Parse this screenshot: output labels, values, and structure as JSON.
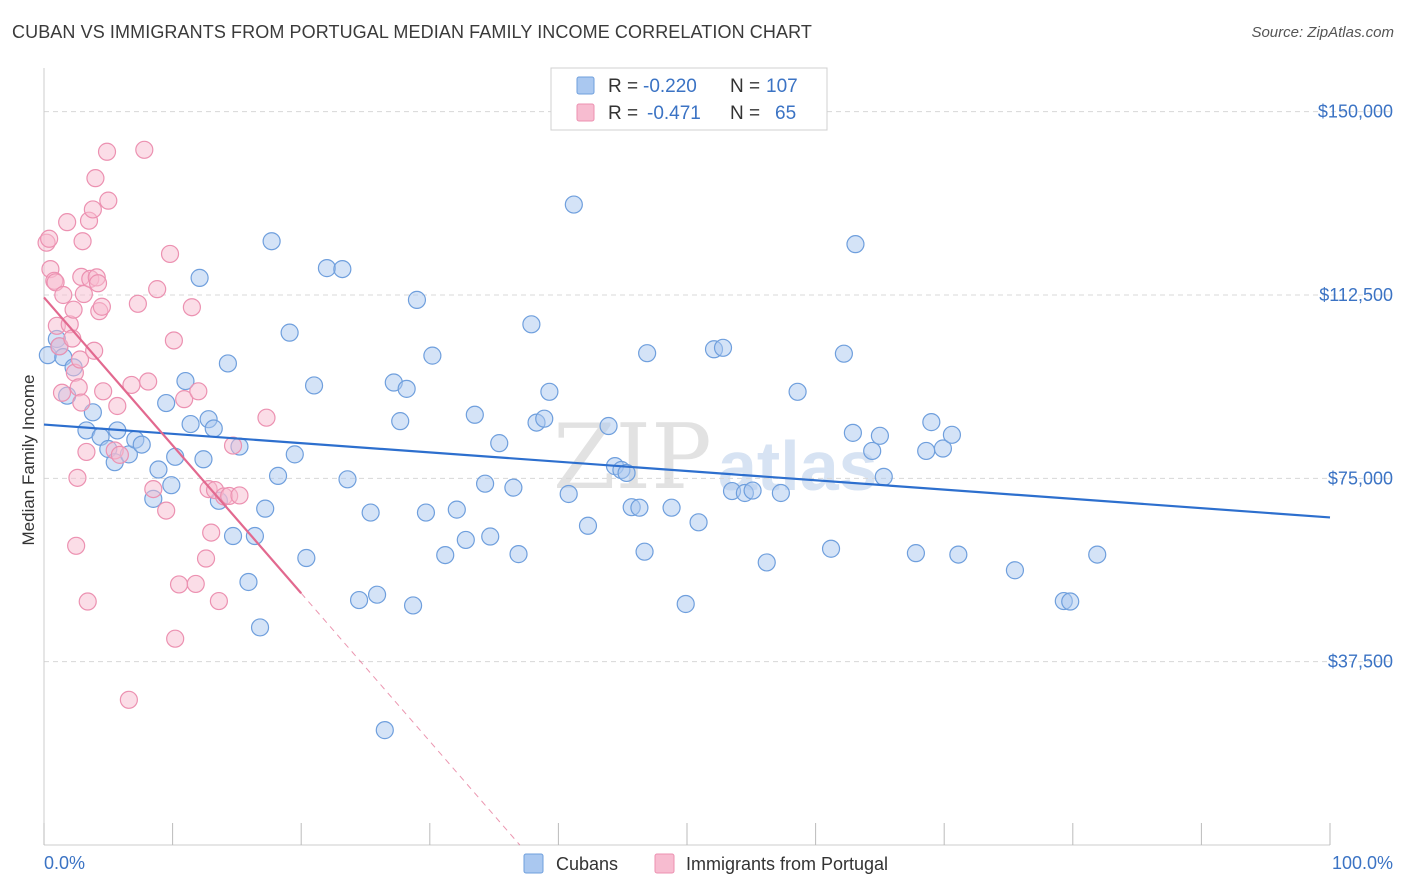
{
  "title": "CUBAN VS IMMIGRANTS FROM PORTUGAL MEDIAN FAMILY INCOME CORRELATION CHART",
  "source": "Source: ZipAtlas.com",
  "watermark": {
    "zip": "ZIP",
    "atlas": "atlas"
  },
  "colors": {
    "blue_fill": "#aac8f0",
    "blue_stroke": "#6f9fdd",
    "blue_line": "#2d6fce",
    "pink_fill": "#f7bcd0",
    "pink_stroke": "#ec91b1",
    "pink_line": "#e2698f",
    "grid": "#d8d8d8",
    "label": "#3b73c4"
  },
  "legend": {
    "rows": [
      {
        "r_label": "R =",
        "r_value": "-0.220",
        "n_label": "N =",
        "n_value": "107"
      },
      {
        "r_label": "R =",
        "r_value": "-0.471",
        "n_label": "N =",
        "n_value": "65"
      }
    ]
  },
  "chart_data": {
    "type": "scatter",
    "xlabel": "",
    "ylabel": "Median Family Income",
    "xlim": [
      0,
      100
    ],
    "ylim": [
      0,
      157500
    ],
    "x_tick_labels": [
      "0.0%",
      "100.0%"
    ],
    "y_ticks": [
      37500,
      75000,
      112500,
      150000
    ],
    "y_tick_labels": [
      "$37,500",
      "$75,000",
      "$112,500",
      "$150,000"
    ],
    "grid": true,
    "legend_position": "bottom",
    "series": [
      {
        "name": "Cubans",
        "r": -0.22,
        "n": 107,
        "trend": {
          "x": [
            0,
            100
          ],
          "y": [
            86000,
            67000
          ]
        },
        "points": [
          [
            0.3,
            100200
          ],
          [
            1.0,
            103500
          ],
          [
            1.2,
            102000
          ],
          [
            1.5,
            99800
          ],
          [
            1.8,
            91900
          ],
          [
            2.3,
            97700
          ],
          [
            3.3,
            84800
          ],
          [
            3.8,
            88500
          ],
          [
            4.4,
            83500
          ],
          [
            5.0,
            81000
          ],
          [
            5.5,
            78300
          ],
          [
            5.7,
            84800
          ],
          [
            6.6,
            79900
          ],
          [
            7.1,
            82900
          ],
          [
            7.6,
            81900
          ],
          [
            8.5,
            70800
          ],
          [
            8.9,
            76800
          ],
          [
            9.5,
            90400
          ],
          [
            9.9,
            73600
          ],
          [
            10.2,
            79400
          ],
          [
            11.0,
            94900
          ],
          [
            11.4,
            86100
          ],
          [
            12.1,
            116000
          ],
          [
            12.4,
            78900
          ],
          [
            12.8,
            87100
          ],
          [
            13.2,
            85200
          ],
          [
            13.6,
            70400
          ],
          [
            14.3,
            98500
          ],
          [
            14.7,
            63200
          ],
          [
            15.2,
            81500
          ],
          [
            15.9,
            53800
          ],
          [
            16.4,
            63200
          ],
          [
            16.8,
            44500
          ],
          [
            17.2,
            68800
          ],
          [
            17.7,
            123500
          ],
          [
            18.2,
            75500
          ],
          [
            19.1,
            104800
          ],
          [
            19.5,
            79900
          ],
          [
            20.4,
            58700
          ],
          [
            21.0,
            94000
          ],
          [
            22.0,
            118000
          ],
          [
            23.2,
            117800
          ],
          [
            23.6,
            74800
          ],
          [
            24.5,
            50100
          ],
          [
            25.4,
            68000
          ],
          [
            25.9,
            51200
          ],
          [
            26.5,
            23500
          ],
          [
            27.2,
            94600
          ],
          [
            27.7,
            86700
          ],
          [
            28.2,
            93300
          ],
          [
            28.7,
            49000
          ],
          [
            29.0,
            111500
          ],
          [
            29.7,
            68000
          ],
          [
            30.2,
            100100
          ],
          [
            31.2,
            59300
          ],
          [
            32.1,
            68600
          ],
          [
            32.8,
            62400
          ],
          [
            33.5,
            88000
          ],
          [
            34.3,
            73900
          ],
          [
            34.7,
            63100
          ],
          [
            35.4,
            82200
          ],
          [
            36.5,
            73100
          ],
          [
            36.9,
            59500
          ],
          [
            37.9,
            106500
          ],
          [
            38.3,
            86400
          ],
          [
            38.9,
            87200
          ],
          [
            39.3,
            92700
          ],
          [
            40.8,
            71800
          ],
          [
            41.2,
            131000
          ],
          [
            42.3,
            65300
          ],
          [
            43.9,
            85700
          ],
          [
            44.4,
            77500
          ],
          [
            44.9,
            76700
          ],
          [
            45.3,
            76100
          ],
          [
            45.7,
            69100
          ],
          [
            46.3,
            69000
          ],
          [
            46.7,
            60000
          ],
          [
            46.9,
            100600
          ],
          [
            48.8,
            69000
          ],
          [
            49.9,
            49300
          ],
          [
            50.9,
            66000
          ],
          [
            52.1,
            101400
          ],
          [
            52.8,
            101700
          ],
          [
            53.5,
            72400
          ],
          [
            54.5,
            72000
          ],
          [
            55.1,
            72500
          ],
          [
            56.2,
            57800
          ],
          [
            57.3,
            72000
          ],
          [
            58.6,
            92700
          ],
          [
            61.2,
            60600
          ],
          [
            62.2,
            100500
          ],
          [
            62.9,
            84300
          ],
          [
            63.1,
            122900
          ],
          [
            64.4,
            80600
          ],
          [
            65.0,
            83700
          ],
          [
            65.3,
            75300
          ],
          [
            67.8,
            59700
          ],
          [
            68.6,
            80600
          ],
          [
            69.0,
            86500
          ],
          [
            69.9,
            81100
          ],
          [
            70.6,
            83900
          ],
          [
            71.1,
            59400
          ],
          [
            75.5,
            56200
          ],
          [
            79.3,
            49900
          ],
          [
            79.8,
            49800
          ],
          [
            81.9,
            59400
          ]
        ]
      },
      {
        "name": "Immigrants from Portugal",
        "r": -0.471,
        "n": 65,
        "trend": {
          "x": [
            0,
            20
          ],
          "y": [
            112000,
            51500
          ]
        },
        "trend_dashed": {
          "x": [
            20,
            37
          ],
          "y": [
            51500,
            0
          ]
        },
        "points": [
          [
            0.2,
            123200
          ],
          [
            0.4,
            124000
          ],
          [
            0.5,
            117800
          ],
          [
            0.8,
            115400
          ],
          [
            0.9,
            115100
          ],
          [
            1.0,
            106200
          ],
          [
            1.2,
            102000
          ],
          [
            1.4,
            92500
          ],
          [
            1.5,
            112500
          ],
          [
            1.8,
            127400
          ],
          [
            2.0,
            106500
          ],
          [
            2.2,
            103600
          ],
          [
            2.3,
            109500
          ],
          [
            2.4,
            96600
          ],
          [
            2.5,
            61200
          ],
          [
            2.6,
            75100
          ],
          [
            2.7,
            93600
          ],
          [
            2.8,
            99300
          ],
          [
            2.9,
            90500
          ],
          [
            2.9,
            116200
          ],
          [
            3.0,
            123500
          ],
          [
            3.1,
            112700
          ],
          [
            3.3,
            80400
          ],
          [
            3.4,
            49800
          ],
          [
            3.5,
            127700
          ],
          [
            3.6,
            115800
          ],
          [
            3.8,
            130000
          ],
          [
            3.9,
            101100
          ],
          [
            4.0,
            136400
          ],
          [
            4.1,
            116100
          ],
          [
            4.2,
            114900
          ],
          [
            4.3,
            109200
          ],
          [
            4.5,
            110100
          ],
          [
            4.6,
            92800
          ],
          [
            4.9,
            141800
          ],
          [
            5.0,
            131800
          ],
          [
            5.5,
            80700
          ],
          [
            5.7,
            89800
          ],
          [
            5.9,
            79800
          ],
          [
            6.6,
            29700
          ],
          [
            6.8,
            94100
          ],
          [
            7.3,
            110700
          ],
          [
            7.8,
            142200
          ],
          [
            8.1,
            94800
          ],
          [
            8.5,
            72800
          ],
          [
            8.8,
            113700
          ],
          [
            9.5,
            68400
          ],
          [
            9.8,
            120900
          ],
          [
            10.1,
            103200
          ],
          [
            10.2,
            42200
          ],
          [
            10.5,
            53300
          ],
          [
            10.9,
            91200
          ],
          [
            11.5,
            110000
          ],
          [
            11.8,
            53400
          ],
          [
            12.0,
            92800
          ],
          [
            12.6,
            58600
          ],
          [
            12.8,
            72800
          ],
          [
            13.0,
            63900
          ],
          [
            13.3,
            72600
          ],
          [
            13.6,
            49900
          ],
          [
            14.0,
            71300
          ],
          [
            14.4,
            71400
          ],
          [
            14.7,
            81700
          ],
          [
            15.2,
            71500
          ],
          [
            17.3,
            87400
          ]
        ]
      }
    ]
  }
}
